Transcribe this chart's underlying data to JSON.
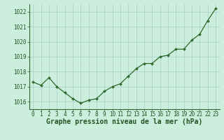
{
  "x": [
    0,
    1,
    2,
    3,
    4,
    5,
    6,
    7,
    8,
    9,
    10,
    11,
    12,
    13,
    14,
    15,
    16,
    17,
    18,
    19,
    20,
    21,
    22,
    23
  ],
  "y": [
    1017.3,
    1017.1,
    1017.6,
    1017.0,
    1016.6,
    1016.2,
    1015.9,
    1016.1,
    1016.2,
    1016.7,
    1017.0,
    1017.2,
    1017.7,
    1018.2,
    1018.55,
    1018.55,
    1019.0,
    1019.1,
    1019.5,
    1019.5,
    1020.1,
    1020.5,
    1021.4,
    1022.2
  ],
  "ylim": [
    1015.5,
    1022.5
  ],
  "xlim": [
    -0.5,
    23.5
  ],
  "yticks": [
    1016,
    1017,
    1018,
    1019,
    1020,
    1021,
    1022
  ],
  "xtick_labels": [
    "0",
    "1",
    "2",
    "3",
    "4",
    "5",
    "6",
    "7",
    "8",
    "9",
    "10",
    "11",
    "12",
    "13",
    "14",
    "15",
    "16",
    "17",
    "18",
    "19",
    "20",
    "21",
    "22",
    "23"
  ],
  "xlabel": "Graphe pression niveau de la mer (hPa)",
  "line_color": "#2d6a2d",
  "marker": "D",
  "marker_size": 2.0,
  "bg_color": "#cceedd",
  "grid_color": "#aacccc",
  "spine_color": "#336633",
  "tick_color": "#225522",
  "label_color": "#225522",
  "tick_fontsize": 5.5,
  "xlabel_fontsize": 7.0,
  "line_width": 0.9
}
